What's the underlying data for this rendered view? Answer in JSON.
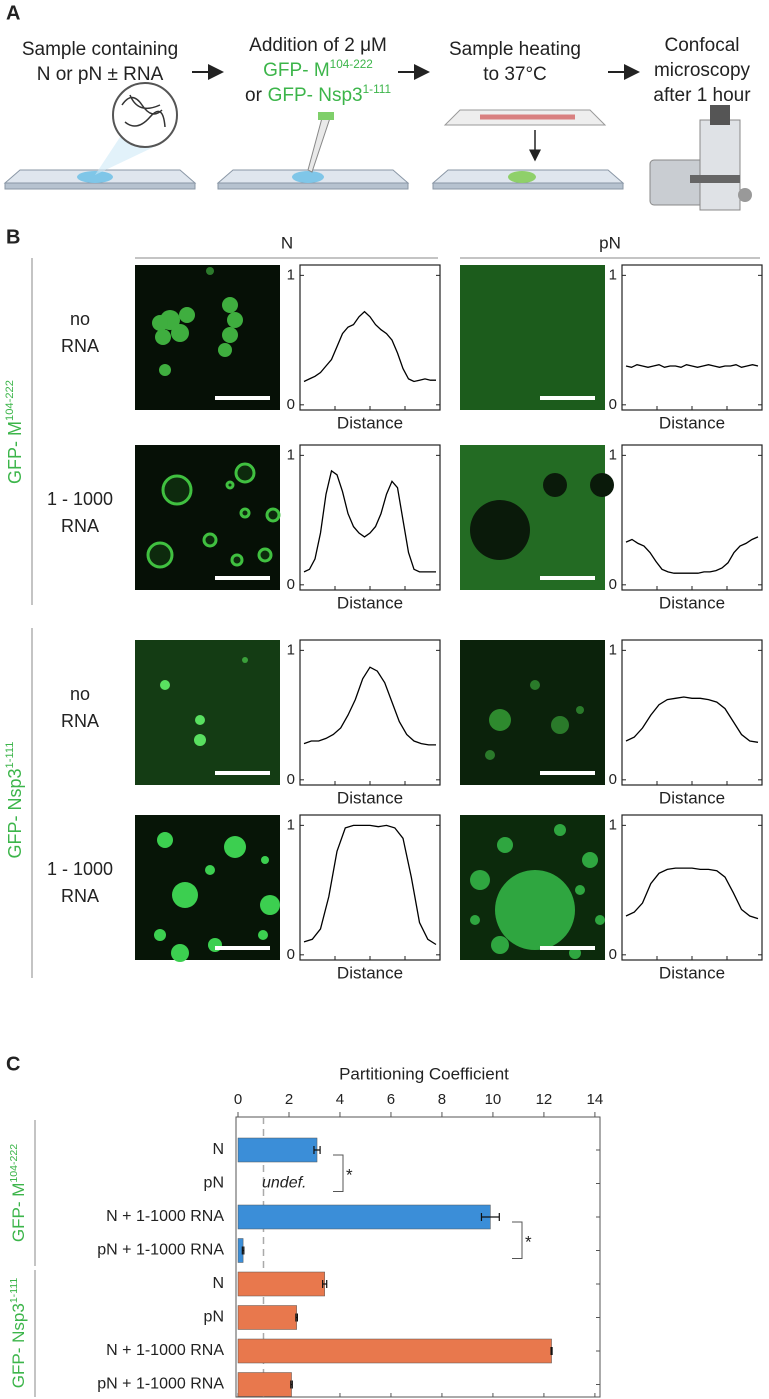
{
  "panel_a": {
    "label": "A",
    "steps": [
      {
        "lines": [
          [
            {
              "text": "Sample containing"
            }
          ],
          [
            {
              "text": "N or pN ± RNA"
            }
          ]
        ]
      },
      {
        "lines": [
          [
            {
              "text": "Addition of 2 μM"
            }
          ],
          [
            {
              "text": "GFP- M",
              "color": "#3cb54a"
            },
            {
              "text": "104-222",
              "color": "#3cb54a",
              "sup": true
            }
          ],
          [
            {
              "text": "or"
            },
            {
              "text": "GFP- Nsp3",
              "color": "#3cb54a"
            },
            {
              "text": "1-111",
              "color": "#3cb54a",
              "sup": true
            }
          ]
        ]
      },
      {
        "lines": [
          [
            {
              "text": "Sample heating"
            }
          ],
          [
            {
              "text": "to 37°C"
            }
          ]
        ]
      },
      {
        "lines": [
          [
            {
              "text": "Confocal"
            }
          ],
          [
            {
              "text": "microscopy"
            }
          ],
          [
            {
              "text": "after 1 hour"
            }
          ]
        ]
      }
    ]
  },
  "panel_b": {
    "label": "B",
    "columns": [
      "N",
      "pN"
    ],
    "xlabel": "Distance",
    "ylim": [
      -0.04,
      1.08
    ],
    "yticks": [
      0,
      1
    ],
    "line_color": "#000000",
    "groups": [
      {
        "label": [
          {
            "text": "GFP- M"
          },
          {
            "text": "104-222",
            "sup": true
          }
        ],
        "color": "#3cb54a",
        "rows": [
          {
            "label": [
              "no",
              "RNA"
            ],
            "profiles": [
              {
                "values": [
                  0.18,
                  0.2,
                  0.22,
                  0.25,
                  0.3,
                  0.35,
                  0.45,
                  0.55,
                  0.6,
                  0.62,
                  0.68,
                  0.72,
                  0.68,
                  0.62,
                  0.58,
                  0.55,
                  0.5,
                  0.4,
                  0.28,
                  0.2,
                  0.18,
                  0.19,
                  0.2,
                  0.19,
                  0.19
                ]
              },
              {
                "values": [
                  0.3,
                  0.29,
                  0.31,
                  0.3,
                  0.29,
                  0.3,
                  0.31,
                  0.29,
                  0.3,
                  0.3,
                  0.29,
                  0.31,
                  0.3,
                  0.29,
                  0.3,
                  0.31,
                  0.3,
                  0.29,
                  0.3,
                  0.3,
                  0.31,
                  0.29,
                  0.3,
                  0.31,
                  0.3
                ]
              }
            ]
          },
          {
            "label": [
              "1 - 1000",
              "RNA"
            ],
            "profiles": [
              {
                "values": [
                  0.1,
                  0.12,
                  0.2,
                  0.4,
                  0.7,
                  0.88,
                  0.85,
                  0.72,
                  0.55,
                  0.45,
                  0.4,
                  0.37,
                  0.4,
                  0.45,
                  0.55,
                  0.7,
                  0.8,
                  0.75,
                  0.5,
                  0.25,
                  0.12,
                  0.1,
                  0.1,
                  0.1,
                  0.1
                ]
              },
              {
                "values": [
                  0.33,
                  0.35,
                  0.32,
                  0.3,
                  0.25,
                  0.18,
                  0.12,
                  0.1,
                  0.09,
                  0.09,
                  0.09,
                  0.09,
                  0.09,
                  0.1,
                  0.1,
                  0.11,
                  0.13,
                  0.17,
                  0.25,
                  0.3,
                  0.32,
                  0.35,
                  0.37
                ]
              }
            ]
          }
        ]
      },
      {
        "label": [
          {
            "text": "GFP- Nsp3"
          },
          {
            "text": "1-111",
            "sup": true
          }
        ],
        "color": "#3cb54a",
        "rows": [
          {
            "label": [
              "no",
              "RNA"
            ],
            "profiles": [
              {
                "values": [
                  0.28,
                  0.3,
                  0.3,
                  0.32,
                  0.35,
                  0.4,
                  0.5,
                  0.62,
                  0.78,
                  0.87,
                  0.84,
                  0.75,
                  0.6,
                  0.45,
                  0.35,
                  0.3,
                  0.28,
                  0.27,
                  0.27
                ]
              },
              {
                "values": [
                  0.3,
                  0.33,
                  0.4,
                  0.5,
                  0.58,
                  0.62,
                  0.63,
                  0.64,
                  0.63,
                  0.63,
                  0.62,
                  0.6,
                  0.55,
                  0.45,
                  0.35,
                  0.3,
                  0.29
                ]
              }
            ]
          },
          {
            "label": [
              "1 - 1000",
              "RNA"
            ],
            "profiles": [
              {
                "values": [
                  0.1,
                  0.12,
                  0.2,
                  0.45,
                  0.8,
                  0.98,
                  1.0,
                  1.0,
                  1.0,
                  0.99,
                  1.0,
                  0.98,
                  0.9,
                  0.6,
                  0.25,
                  0.12,
                  0.08
                ]
              },
              {
                "values": [
                  0.3,
                  0.33,
                  0.4,
                  0.55,
                  0.63,
                  0.66,
                  0.67,
                  0.67,
                  0.67,
                  0.66,
                  0.66,
                  0.65,
                  0.6,
                  0.48,
                  0.35,
                  0.3,
                  0.28
                ]
              }
            ]
          }
        ]
      }
    ]
  },
  "panel_c": {
    "label": "C",
    "chart_data": {
      "type": "bar",
      "orientation": "horizontal",
      "xlabel": "Partitioning Coefficient",
      "xlim": [
        0,
        14.2
      ],
      "xticks": [
        0,
        2,
        4,
        6,
        8,
        10,
        12,
        14
      ],
      "reference_line": 1,
      "significance": [
        "*",
        "*"
      ],
      "groups": [
        {
          "label": [
            {
              "text": "GFP- M"
            },
            {
              "text": "104-222",
              "sup": true
            }
          ],
          "label_color": "#3cb54a",
          "color": "#3b8ed8",
          "categories": [
            "N",
            "pN",
            "N + 1-1000 RNA",
            "pN + 1-1000 RNA"
          ],
          "values": [
            3.1,
            null,
            9.9,
            0.2
          ],
          "errors": [
            0.12,
            null,
            0.35,
            0.03
          ],
          "value_labels": [
            null,
            "undef.",
            null,
            null
          ]
        },
        {
          "label": [
            {
              "text": "GFP- Nsp3"
            },
            {
              "text": "1-111",
              "sup": true
            }
          ],
          "label_color": "#3cb54a",
          "color": "#e8784d",
          "categories": [
            "N",
            "pN",
            "N + 1-1000 RNA",
            "pN + 1-1000 RNA"
          ],
          "values": [
            3.4,
            2.3,
            12.3,
            2.1
          ],
          "errors": [
            0.08,
            0.03,
            0.02,
            0.03
          ]
        }
      ]
    }
  }
}
